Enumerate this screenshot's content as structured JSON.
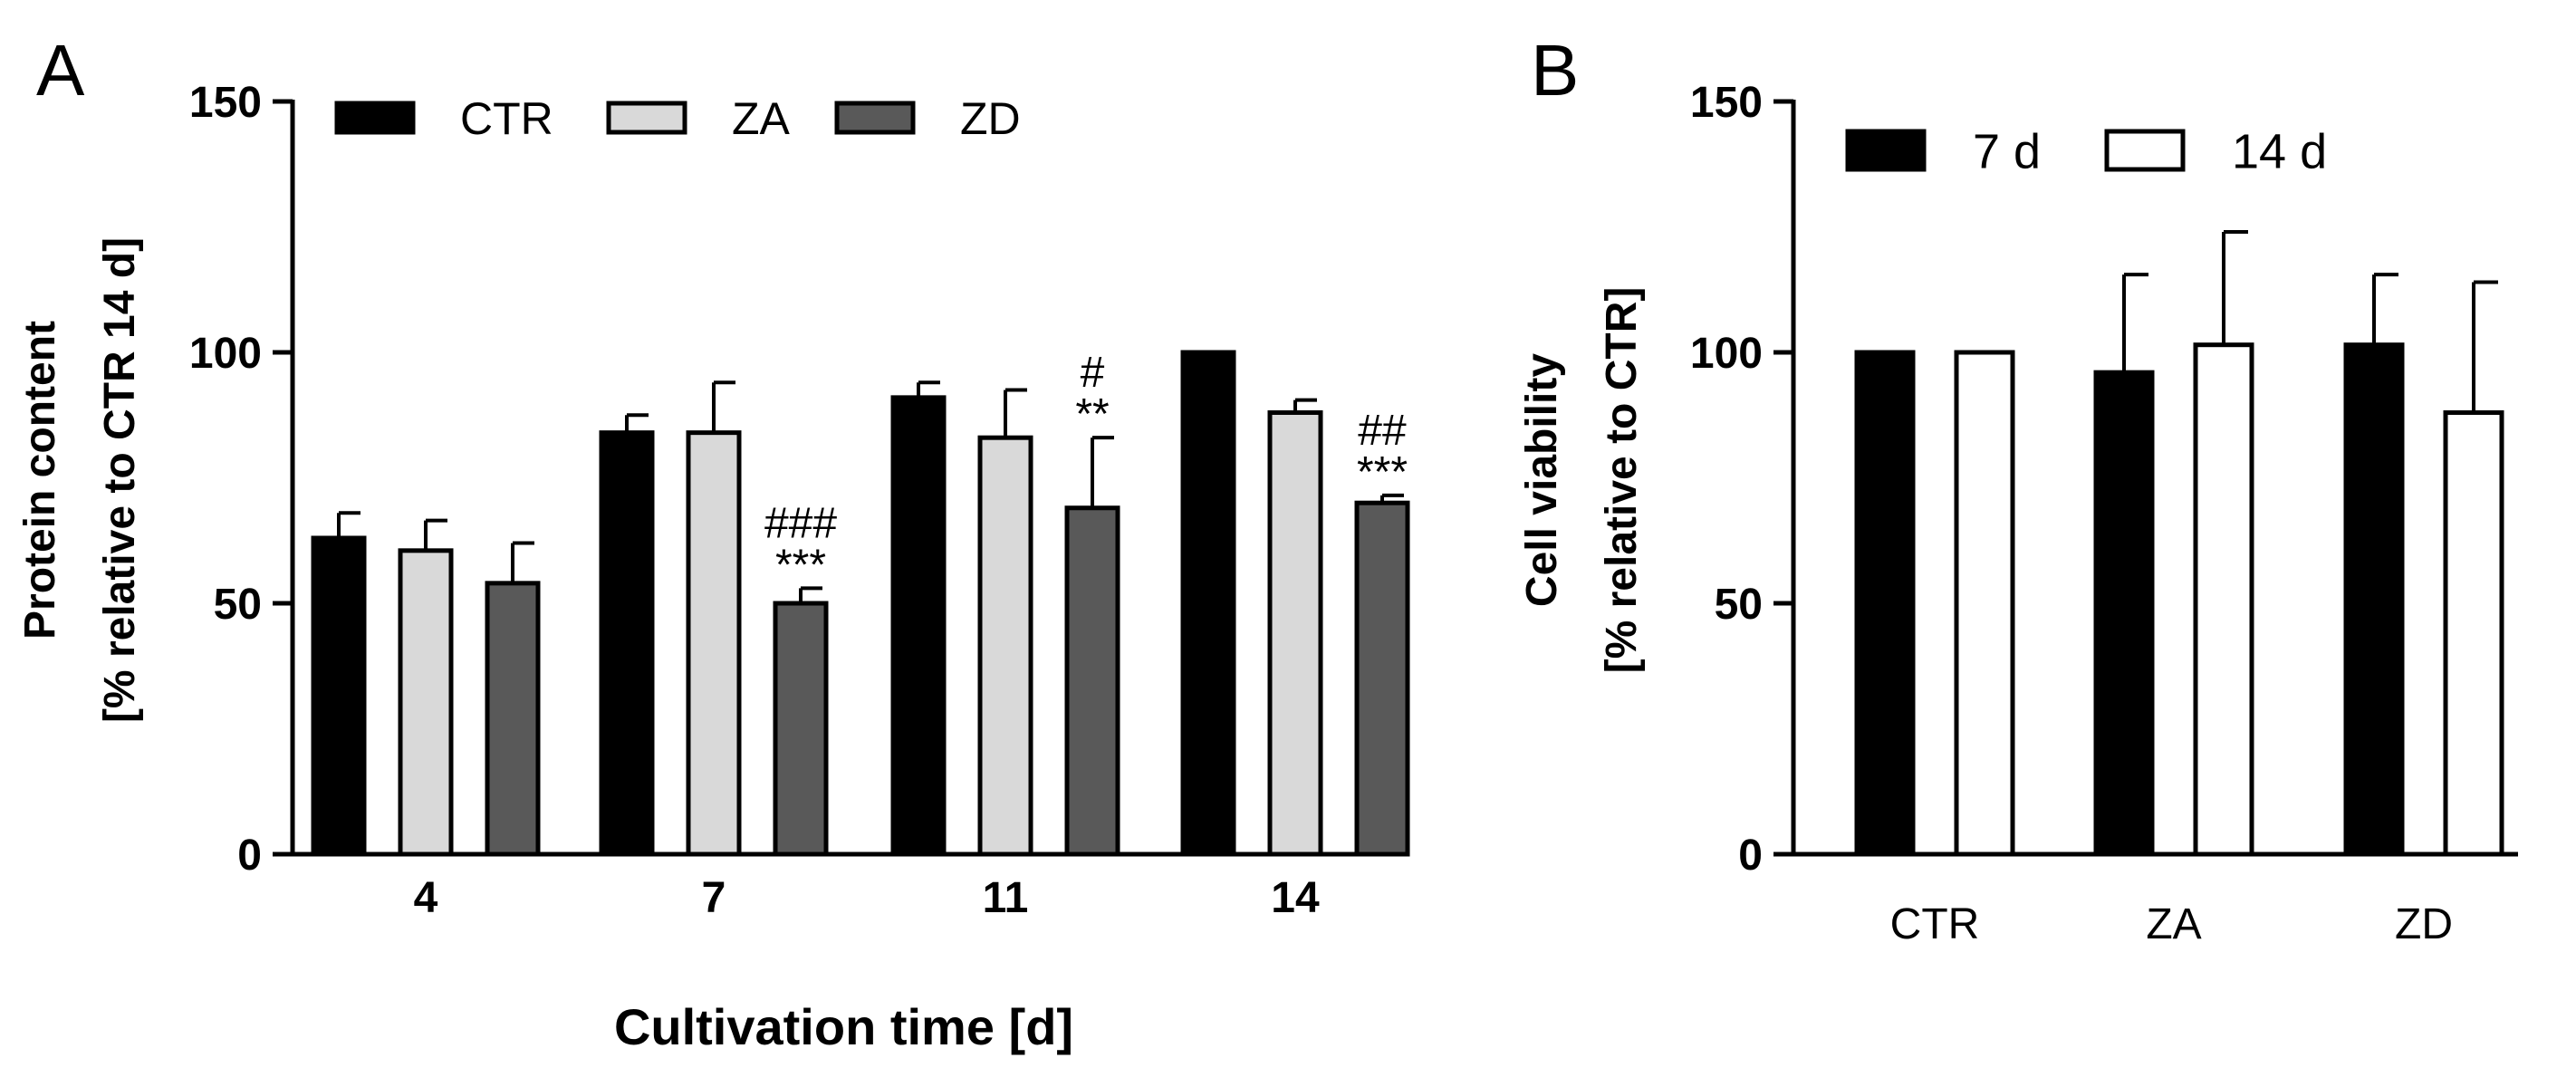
{
  "chart_data": [
    {
      "panel_label": "A",
      "type": "bar",
      "xlabel": "Cultivation time [d]",
      "ylabel_line1": "Protein content",
      "ylabel_line2": "[% relative to CTR 14 d]",
      "ylim": [
        0,
        150
      ],
      "yticks": [
        0,
        50,
        100,
        150
      ],
      "categories": [
        "4",
        "7",
        "11",
        "14"
      ],
      "legend_position": "top-left",
      "series": [
        {
          "name": "CTR",
          "color": "#000000",
          "values": [
            63,
            84,
            91,
            100
          ],
          "errors": [
            5,
            3.5,
            3,
            0
          ]
        },
        {
          "name": "ZA",
          "color": "#d9d9d9",
          "values": [
            60.5,
            84,
            83,
            88
          ],
          "errors": [
            6,
            10,
            9.5,
            2.5
          ]
        },
        {
          "name": "ZD",
          "color": "#595959",
          "values": [
            54,
            50,
            69,
            70
          ],
          "errors": [
            8,
            3,
            14,
            1.5
          ]
        }
      ],
      "annotations": [
        {
          "category": "7",
          "series": "ZD",
          "lines": [
            "###",
            "***"
          ]
        },
        {
          "category": "11",
          "series": "ZD",
          "lines": [
            "#",
            "**"
          ]
        },
        {
          "category": "14",
          "series": "ZD",
          "lines": [
            "##",
            "***"
          ]
        }
      ]
    },
    {
      "panel_label": "B",
      "type": "bar",
      "xlabel": "",
      "ylabel_line1": "Cell viability",
      "ylabel_line2": "[% relative to CTR]",
      "ylim": [
        0,
        150
      ],
      "yticks": [
        0,
        50,
        100,
        150
      ],
      "categories": [
        "CTR",
        "ZA",
        "ZD"
      ],
      "legend_position": "top-left",
      "series": [
        {
          "name": "7 d",
          "color": "#000000",
          "values": [
            100,
            96,
            101.5
          ],
          "errors": [
            0,
            19.5,
            14
          ]
        },
        {
          "name": "14 d",
          "color": "#ffffff",
          "values": [
            100,
            101.5,
            88
          ],
          "errors": [
            0,
            22.5,
            26
          ]
        }
      ]
    }
  ]
}
